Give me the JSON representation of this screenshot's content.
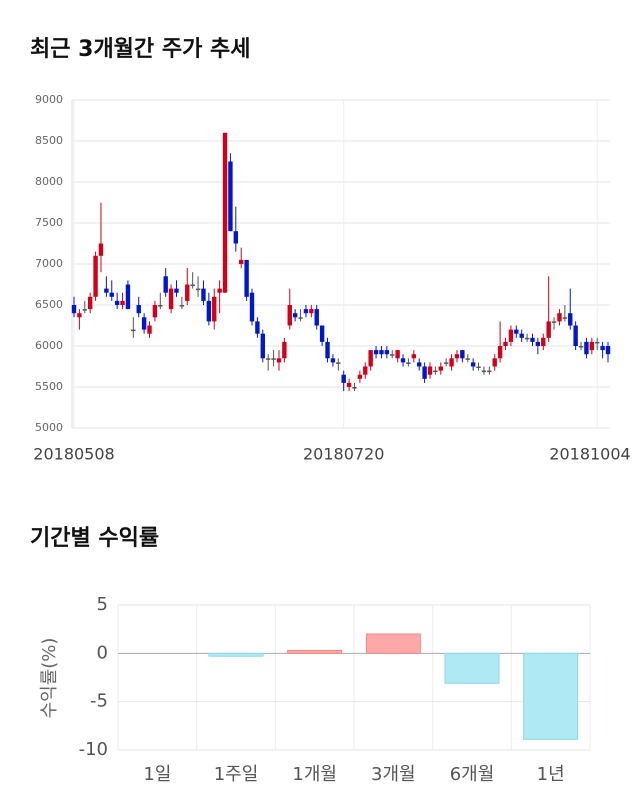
{
  "chart_data": [
    {
      "type": "candlestick",
      "title": "최근 3개월간 주가 추세",
      "categories": [
        "20180508",
        null,
        null,
        null,
        null,
        null,
        null,
        null,
        null,
        null,
        null,
        null,
        null,
        null,
        null,
        null,
        null,
        null,
        null,
        null,
        null,
        null,
        null,
        null,
        null,
        null,
        null,
        null,
        null,
        null,
        null,
        null,
        null,
        null,
        null,
        null,
        null,
        null,
        null,
        null,
        null,
        null,
        null,
        null,
        null,
        null,
        null,
        null,
        null,
        null,
        "20180720",
        null,
        null,
        null,
        null,
        null,
        null,
        null,
        null,
        null,
        null,
        null,
        null,
        null,
        null,
        null,
        null,
        null,
        null,
        null,
        null,
        null,
        null,
        null,
        null,
        null,
        null,
        null,
        null,
        null,
        null,
        null,
        null,
        null,
        null,
        null,
        null,
        null,
        null,
        null,
        null,
        null,
        null,
        null,
        null,
        null,
        null,
        "20181004",
        null,
        null
      ],
      "open": [
        6500,
        6350,
        6450,
        6450,
        6600,
        7100,
        6700,
        6650,
        6550,
        6500,
        6750,
        6200,
        6500,
        6350,
        6150,
        6350,
        6500,
        6850,
        6450,
        6700,
        6500,
        6550,
        6750,
        6700,
        6700,
        6550,
        6300,
        6650,
        6650,
        8250,
        7400,
        7000,
        7050,
        6650,
        6300,
        6150,
        5850,
        5850,
        5800,
        5850,
        6250,
        6400,
        6350,
        6450,
        6400,
        6450,
        6250,
        6050,
        5850,
        5800,
        5650,
        5500,
        5500,
        5600,
        5650,
        5750,
        5950,
        5950,
        5950,
        5900,
        5850,
        5850,
        5800,
        5850,
        5800,
        5750,
        5650,
        5700,
        5700,
        5800,
        5750,
        5850,
        5950,
        5850,
        5800,
        5750,
        5700,
        5700,
        5750,
        5850,
        6000,
        6050,
        6200,
        6150,
        6100,
        6100,
        6050,
        6000,
        6100,
        6300,
        6300,
        6350,
        6400,
        6250,
        6000,
        6050,
        5950,
        6050,
        6000,
        6000
      ],
      "high": [
        6600,
        6450,
        6550,
        6650,
        7150,
        7750,
        6850,
        6800,
        6650,
        6650,
        6800,
        6350,
        6600,
        6400,
        6300,
        6550,
        6650,
        6950,
        6750,
        6800,
        6600,
        6950,
        6900,
        6850,
        6800,
        6650,
        6700,
        6800,
        8600,
        8350,
        7700,
        7200,
        7050,
        6700,
        6350,
        6200,
        5900,
        5950,
        5950,
        6100,
        6700,
        6450,
        6450,
        6500,
        6500,
        6500,
        6250,
        6100,
        5900,
        5850,
        5700,
        5600,
        5550,
        5700,
        5800,
        5950,
        6000,
        6000,
        6000,
        5950,
        5950,
        5900,
        5850,
        5950,
        5850,
        5800,
        5800,
        5750,
        5800,
        5850,
        5900,
        5950,
        5950,
        5900,
        5850,
        5800,
        5750,
        5750,
        5900,
        6300,
        6100,
        6250,
        6250,
        6200,
        6150,
        6150,
        6100,
        6150,
        6850,
        6350,
        6450,
        6500,
        6700,
        6300,
        6050,
        6100,
        6100,
        6100,
        6050,
        6050
      ],
      "low": [
        6350,
        6200,
        6400,
        6400,
        6550,
        6900,
        6600,
        6550,
        6450,
        6450,
        6450,
        6100,
        6350,
        6150,
        6100,
        6300,
        6450,
        6600,
        6400,
        6600,
        6450,
        6500,
        6700,
        6600,
        6500,
        6250,
        6200,
        6400,
        6650,
        7400,
        7150,
        6950,
        6550,
        6250,
        6100,
        5800,
        5700,
        5750,
        5700,
        5800,
        6200,
        6300,
        6300,
        6350,
        6350,
        6200,
        6000,
        5800,
        5750,
        5700,
        5450,
        5450,
        5450,
        5550,
        5600,
        5700,
        5850,
        5850,
        5850,
        5850,
        5800,
        5750,
        5750,
        5800,
        5700,
        5550,
        5600,
        5650,
        5650,
        5750,
        5700,
        5800,
        5800,
        5800,
        5700,
        5700,
        5650,
        5650,
        5700,
        5800,
        5950,
        6000,
        6100,
        6050,
        6050,
        6000,
        5900,
        5950,
        6050,
        6200,
        6250,
        6300,
        6200,
        5950,
        5950,
        5850,
        5900,
        5950,
        5850,
        5800
      ],
      "close": [
        6400,
        6400,
        6450,
        6600,
        7100,
        7250,
        6650,
        6600,
        6500,
        6550,
        6450,
        6200,
        6400,
        6200,
        6250,
        6500,
        6500,
        6650,
        6700,
        6650,
        6500,
        6750,
        6750,
        6700,
        6550,
        6300,
        6600,
        6700,
        8600,
        7400,
        7250,
        7050,
        6600,
        6300,
        6150,
        5850,
        5850,
        5850,
        5850,
        6050,
        6500,
        6350,
        6350,
        6400,
        6450,
        6250,
        6050,
        5850,
        5800,
        5800,
        5550,
        5550,
        5500,
        5650,
        5750,
        5950,
        5900,
        5900,
        5900,
        5900,
        5950,
        5800,
        5800,
        5900,
        5750,
        5600,
        5750,
        5700,
        5750,
        5800,
        5850,
        5900,
        5850,
        5850,
        5750,
        5750,
        5700,
        5700,
        5850,
        6000,
        6050,
        6200,
        6150,
        6100,
        6100,
        6050,
        6000,
        6100,
        6300,
        6300,
        6400,
        6350,
        6250,
        6000,
        6000,
        5900,
        6050,
        6050,
        5950,
        5900
      ],
      "up_color": "#d0021b",
      "down_color": "#0018c8",
      "ylim": [
        5000,
        9000
      ],
      "yticks": [
        5000,
        5500,
        6000,
        6500,
        7000,
        7500,
        8000,
        8500,
        9000
      ],
      "grid": true
    },
    {
      "type": "bar",
      "title": "기간별 수익률",
      "ylabel": "수익률(%)",
      "categories": [
        "1일",
        "1주일",
        "1개월",
        "3개월",
        "6개월",
        "1년"
      ],
      "values": [
        0,
        -0.3,
        0.3,
        2.0,
        -3.1,
        -8.9
      ],
      "up_color": "#ffa8a8",
      "down_color": "#aee9f4",
      "ylim": [
        -10,
        5
      ],
      "yticks": [
        5,
        0,
        -5,
        -10
      ],
      "grid": true
    }
  ]
}
